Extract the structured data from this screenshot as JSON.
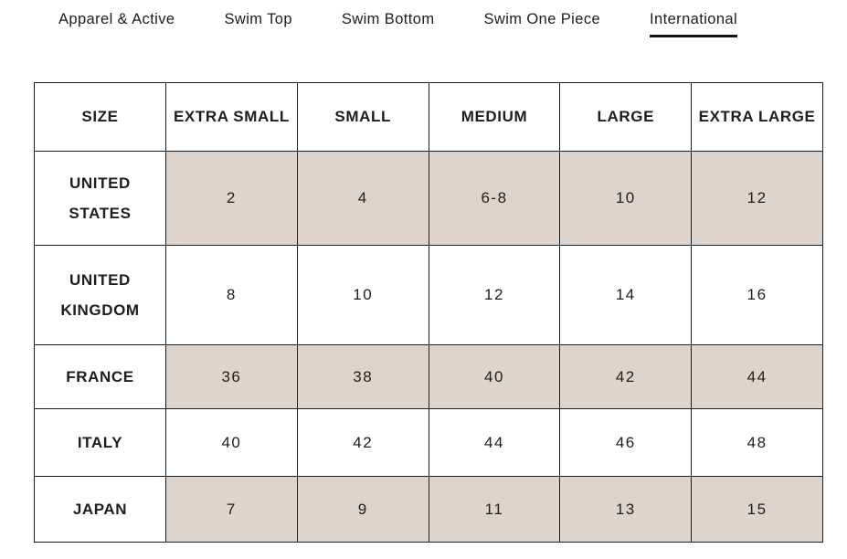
{
  "tabs": [
    {
      "label": "Apparel & Active",
      "active": false
    },
    {
      "label": "Swim Top",
      "active": false
    },
    {
      "label": "Swim Bottom",
      "active": false
    },
    {
      "label": "Swim One Piece",
      "active": false
    },
    {
      "label": "International",
      "active": true
    }
  ],
  "table": {
    "columns": [
      "SIZE",
      "EXTRA SMALL",
      "SMALL",
      "MEDIUM",
      "LARGE",
      "EXTRA LARGE"
    ],
    "rows": [
      {
        "label": "UNITED STATES",
        "values": [
          "2",
          "4",
          "6-8",
          "10",
          "12"
        ],
        "shaded": true
      },
      {
        "label": "UNITED KINGDOM",
        "values": [
          "8",
          "10",
          "12",
          "14",
          "16"
        ],
        "shaded": false
      },
      {
        "label": "FRANCE",
        "values": [
          "36",
          "38",
          "40",
          "42",
          "44"
        ],
        "shaded": true
      },
      {
        "label": "ITALY",
        "values": [
          "40",
          "42",
          "44",
          "46",
          "48"
        ],
        "shaded": false
      },
      {
        "label": "JAPAN",
        "values": [
          "7",
          "9",
          "11",
          "13",
          "15"
        ],
        "shaded": true
      }
    ],
    "colors": {
      "shaded_bg": "#ded4ce",
      "border": "#1c1c1c",
      "text": "#1d1d1d",
      "active_tab_underline": "#121212"
    }
  }
}
